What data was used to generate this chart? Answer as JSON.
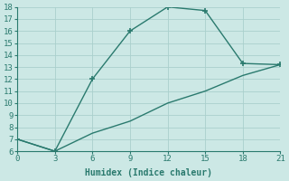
{
  "xlabel": "Humidex (Indice chaleur)",
  "line1_x": [
    0,
    3,
    6,
    9,
    12,
    15,
    18,
    21
  ],
  "line1_y": [
    7,
    6,
    12,
    16,
    18,
    17.7,
    13.3,
    13.2
  ],
  "line2_x": [
    0,
    3,
    6,
    9,
    12,
    15,
    18,
    21
  ],
  "line2_y": [
    7,
    6,
    7.5,
    8.5,
    10,
    11,
    12.3,
    13.2
  ],
  "line_color": "#2a7a6e",
  "bg_color": "#cce8e5",
  "grid_color": "#aad0cc",
  "xlim": [
    0,
    21
  ],
  "ylim": [
    6,
    18
  ],
  "xticks": [
    0,
    3,
    6,
    9,
    12,
    15,
    18,
    21
  ],
  "yticks": [
    6,
    7,
    8,
    9,
    10,
    11,
    12,
    13,
    14,
    15,
    16,
    17,
    18
  ],
  "marker": "+",
  "marker_size": 5,
  "linewidth": 1.0,
  "tick_labelsize": 6.5,
  "xlabel_fontsize": 7
}
